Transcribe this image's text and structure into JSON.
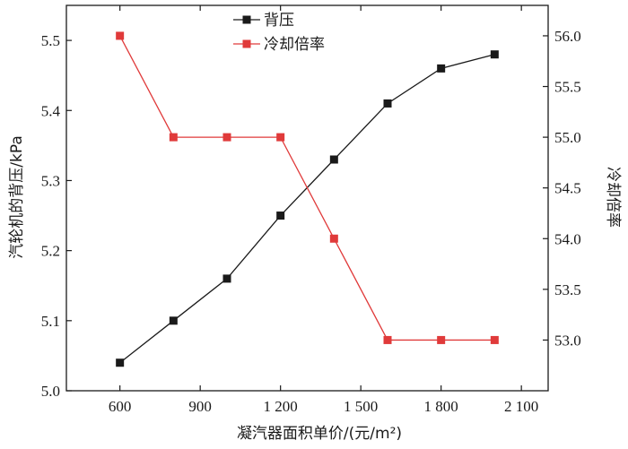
{
  "chart_data": {
    "type": "line",
    "x": [
      600,
      800,
      1000,
      1200,
      1400,
      1600,
      1800,
      2000
    ],
    "x_ticks": [
      600,
      900,
      1200,
      1500,
      1800,
      2100
    ],
    "x_tick_labels": [
      "600",
      "900",
      "1 200",
      "1 500",
      "1 800",
      "2 100"
    ],
    "xlim": [
      400,
      2200
    ],
    "xlabel": "凝汽器面积单价/(元/m²)",
    "ylabel_left": "汽轮机的背压/kPa",
    "ylim_left": [
      5.0,
      5.55
    ],
    "yticks_left": [
      5.0,
      5.1,
      5.2,
      5.3,
      5.4,
      5.5
    ],
    "ytick_labels_left": [
      "5.0",
      "5.1",
      "5.2",
      "5.3",
      "5.4",
      "5.5"
    ],
    "ylabel_right": "冷却倍率",
    "ylim_right": [
      52.5,
      56.3
    ],
    "yticks_right": [
      53.0,
      53.5,
      54.0,
      54.5,
      55.0,
      55.5,
      56.0
    ],
    "ytick_labels_right": [
      "53.0",
      "53.5",
      "54.0",
      "54.5",
      "55.0",
      "55.5",
      "56.0"
    ],
    "series": [
      {
        "name": "背压",
        "axis": "left",
        "color": "#1a1a1a",
        "marker": "square",
        "values": [
          5.04,
          5.1,
          5.16,
          5.25,
          5.33,
          5.41,
          5.46,
          5.48
        ]
      },
      {
        "name": "冷却倍率",
        "axis": "right",
        "color": "#e03a3a",
        "marker": "square",
        "values": [
          56.0,
          55.0,
          55.0,
          55.0,
          54.0,
          53.0,
          53.0,
          53.0
        ]
      }
    ],
    "legend_position": "top-center",
    "grid": false
  }
}
